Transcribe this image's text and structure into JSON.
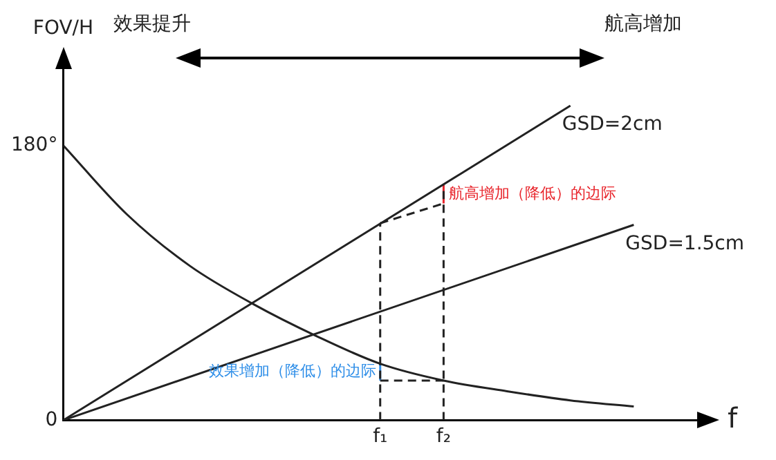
{
  "chart_data": {
    "type": "line",
    "ylabel": "FOV/H",
    "xlabel": "f",
    "annotations": [
      "效果提升",
      "航高增加"
    ],
    "categories": [
      null,
      null,
      null,
      null,
      null,
      "f₁",
      "f₂",
      null,
      null,
      null,
      null
    ],
    "ylim": [
      0,
      230
    ],
    "yticks": [
      0,
      {
        "value": 180,
        "label": "180°"
      }
    ],
    "grid": false,
    "legend": false,
    "marker": "none",
    "line_style": "solid",
    "series": [
      {
        "color": "#222222",
        "values": [
          180,
          135,
          101,
          76,
          55,
          37,
          26,
          19,
          13,
          9,
          null
        ]
      },
      {
        "name": "GSD=2cm",
        "color": "#222222",
        "values": [
          0,
          null,
          null,
          null,
          null,
          null,
          null,
          null,
          206,
          null,
          null
        ]
      },
      {
        "name": "GSD=1.5cm",
        "color": "#222222",
        "values": [
          0,
          null,
          null,
          null,
          null,
          null,
          null,
          null,
          null,
          128,
          null
        ]
      },
      {
        "color": "#222222",
        "line_style": "dashed",
        "x": [
          "f₁",
          "f₁"
        ],
        "values": [
          0,
          129
        ]
      },
      {
        "color": "#222222",
        "line_style": "dashed",
        "x": [
          "f₂",
          "f₂"
        ],
        "values": [
          0,
          154
        ]
      },
      {
        "color": "#222222",
        "line_style": "dashed",
        "x": [
          "f₁",
          "f₂"
        ],
        "values": [
          129,
          142
        ]
      },
      {
        "color": "#222222",
        "line_style": "dashed",
        "x": [
          "f₁",
          "f₂"
        ],
        "values": [
          26,
          26
        ]
      },
      {
        "name": "航高增加（降低）的边际",
        "color": "#e8232a",
        "x": [
          "f₂",
          "f₂"
        ],
        "values": [
          142,
          154
        ]
      },
      {
        "name": "效果增加（降低）的边际",
        "color": "#2e8ee8",
        "x": [
          "f₁",
          "f₁"
        ],
        "values": [
          26,
          37
        ]
      }
    ]
  }
}
